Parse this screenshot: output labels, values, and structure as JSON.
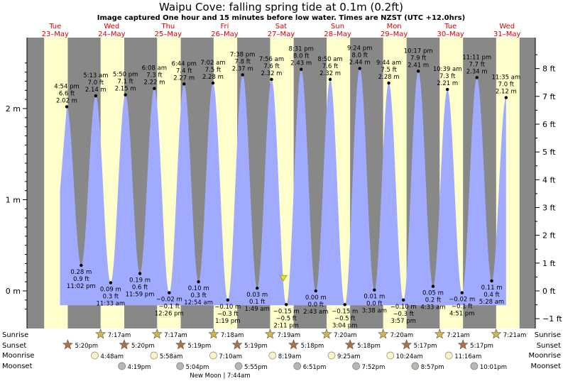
{
  "title": "Waipu Cove: falling  spring tide at 0.1m (0.2ft)",
  "subtitle": "Image captured One hour and 15 minutes before low water. Times are NZST (UTC +12.0hrs)",
  "days": [
    {
      "dow": "Tue",
      "date": "23–May"
    },
    {
      "dow": "Wed",
      "date": "24–May"
    },
    {
      "dow": "Thu",
      "date": "25–May"
    },
    {
      "dow": "Fri",
      "date": "26–May"
    },
    {
      "dow": "Sat",
      "date": "27–May"
    },
    {
      "dow": "Sun",
      "date": "28–May"
    },
    {
      "dow": "Mon",
      "date": "29–May"
    },
    {
      "dow": "Tue",
      "date": "30–May"
    },
    {
      "dow": "Wed",
      "date": "31–May"
    }
  ],
  "chart_data": {
    "type": "area",
    "title": "Waipu Cove: falling  spring tide at 0.1m (0.2ft)",
    "y_left_unit": "m",
    "y_left_ticks": [
      "0 m",
      "1 m",
      "2 m"
    ],
    "y_left_range_m": [
      -0.3,
      2.8
    ],
    "y_right_ticks": [
      "−1 ft",
      "0 ft",
      "1 ft",
      "2 ft",
      "3 ft",
      "4 ft",
      "5 ft",
      "6 ft",
      "7 ft",
      "8 ft"
    ],
    "x_range_days": [
      "2023-05-23",
      "2023-06-01"
    ],
    "fill_color": "#a0aaff",
    "day_color": "#ffffcc",
    "night_color": "#888888",
    "current_level_m": 0.1,
    "events": [
      {
        "type": "high",
        "time": "4:54 pm",
        "ft": "6.6 ft",
        "m": "2.02 m",
        "height": 2.02
      },
      {
        "type": "low",
        "time": "11:02 pm",
        "ft": "0.9 ft",
        "m": "0.28 m",
        "height": 0.28
      },
      {
        "type": "high",
        "time": "5:13 am",
        "ft": "7.0 ft",
        "m": "2.14 m",
        "height": 2.14
      },
      {
        "type": "low",
        "time": "11:33 am",
        "ft": "0.3 ft",
        "m": "0.09 m",
        "height": 0.09
      },
      {
        "type": "high",
        "time": "5:50 pm",
        "ft": "7.1 ft",
        "m": "2.15 m",
        "height": 2.15
      },
      {
        "type": "low",
        "time": "11:59 pm",
        "ft": "0.6 ft",
        "m": "0.19 m",
        "height": 0.19
      },
      {
        "type": "high",
        "time": "6:08 am",
        "ft": "7.3 ft",
        "m": "2.22 m",
        "height": 2.22
      },
      {
        "type": "low",
        "time": "12:26 pm",
        "ft": "−0.1 ft",
        "m": "−0.02 m",
        "height": -0.02
      },
      {
        "type": "high",
        "time": "6:44 pm",
        "ft": "7.4 ft",
        "m": "2.27 m",
        "height": 2.27
      },
      {
        "type": "low",
        "time": "12:54 am",
        "ft": "0.3 ft",
        "m": "0.10 m",
        "height": 0.1
      },
      {
        "type": "high",
        "time": "7:02 am",
        "ft": "7.5 ft",
        "m": "2.28 m",
        "height": 2.28
      },
      {
        "type": "low",
        "time": "1:19 pm",
        "ft": "−0.3 ft",
        "m": "−0.10 m",
        "height": -0.1
      },
      {
        "type": "high",
        "time": "7:38 pm",
        "ft": "7.8 ft",
        "m": "2.37 m",
        "height": 2.37
      },
      {
        "type": "low",
        "time": "1:49 am",
        "ft": "0.1 ft",
        "m": "0.03 m",
        "height": 0.03
      },
      {
        "type": "high",
        "time": "7:56 am",
        "ft": "7.6 ft",
        "m": "2.32 m",
        "height": 2.32
      },
      {
        "type": "low",
        "time": "2:11 pm",
        "ft": "−0.5 ft",
        "m": "−0.15 m",
        "height": -0.15
      },
      {
        "type": "high",
        "time": "8:31 pm",
        "ft": "8.0 ft",
        "m": "2.43 m",
        "height": 2.43
      },
      {
        "type": "low",
        "time": "2:43 am",
        "ft": "0.0 ft",
        "m": "0.00 m",
        "height": 0.0
      },
      {
        "type": "high",
        "time": "8:50 am",
        "ft": "7.6 ft",
        "m": "2.32 m",
        "height": 2.32
      },
      {
        "type": "low",
        "time": "3:04 pm",
        "ft": "−0.5 ft",
        "m": "−0.15 m",
        "height": -0.15
      },
      {
        "type": "high",
        "time": "9:24 pm",
        "ft": "8.0 ft",
        "m": "2.44 m",
        "height": 2.44
      },
      {
        "type": "low",
        "time": "3:38 am",
        "ft": "0.0 ft",
        "m": "0.01 m",
        "height": 0.01
      },
      {
        "type": "high",
        "time": "9:44 am",
        "ft": "7.5 ft",
        "m": "2.28 m",
        "height": 2.28
      },
      {
        "type": "low",
        "time": "3:57 pm",
        "ft": "−0.3 ft",
        "m": "−0.10 m",
        "height": -0.1
      },
      {
        "type": "high",
        "time": "10:17 pm",
        "ft": "7.9 ft",
        "m": "2.41 m",
        "height": 2.41
      },
      {
        "type": "low",
        "time": "4:33 am",
        "ft": "0.2 ft",
        "m": "0.05 m",
        "height": 0.05
      },
      {
        "type": "high",
        "time": "10:39 am",
        "ft": "7.3 ft",
        "m": "2.21 m",
        "height": 2.21
      },
      {
        "type": "low",
        "time": "4:51 pm",
        "ft": "−0.1 ft",
        "m": "−0.02 m",
        "height": -0.02
      },
      {
        "type": "high",
        "time": "11:11 pm",
        "ft": "7.7 ft",
        "m": "2.34 m",
        "height": 2.34
      },
      {
        "type": "low",
        "time": "5:28 am",
        "ft": "0.4 ft",
        "m": "0.11 m",
        "height": 0.11
      },
      {
        "type": "high",
        "time": "11:35 am",
        "ft": "7.0 ft",
        "m": "2.12 m",
        "height": 2.12
      }
    ]
  },
  "astro": {
    "labels": {
      "sunrise": "Sunrise",
      "sunset": "Sunset",
      "moonrise": "Moonrise",
      "moonset": "Moonset"
    },
    "sunrise": [
      "7:17am",
      "7:17am",
      "7:18am",
      "7:19am",
      "7:20am",
      "7:20am",
      "7:21am",
      "7:21am"
    ],
    "sunset": [
      "5:20pm",
      "5:20pm",
      "5:19pm",
      "5:19pm",
      "5:18pm",
      "5:18pm",
      "5:17pm",
      "5:17pm"
    ],
    "moonrise": [
      "4:48am",
      "5:58am",
      "7:10am",
      "8:19am",
      "9:25am",
      "10:24am",
      "11:16am"
    ],
    "moonset": [
      "4:19pm",
      "5:04pm",
      "5:55pm",
      "6:51pm",
      "7:52pm",
      "8:57pm",
      "10:01pm"
    ],
    "new_moon": "New Moon | 7:44am"
  }
}
